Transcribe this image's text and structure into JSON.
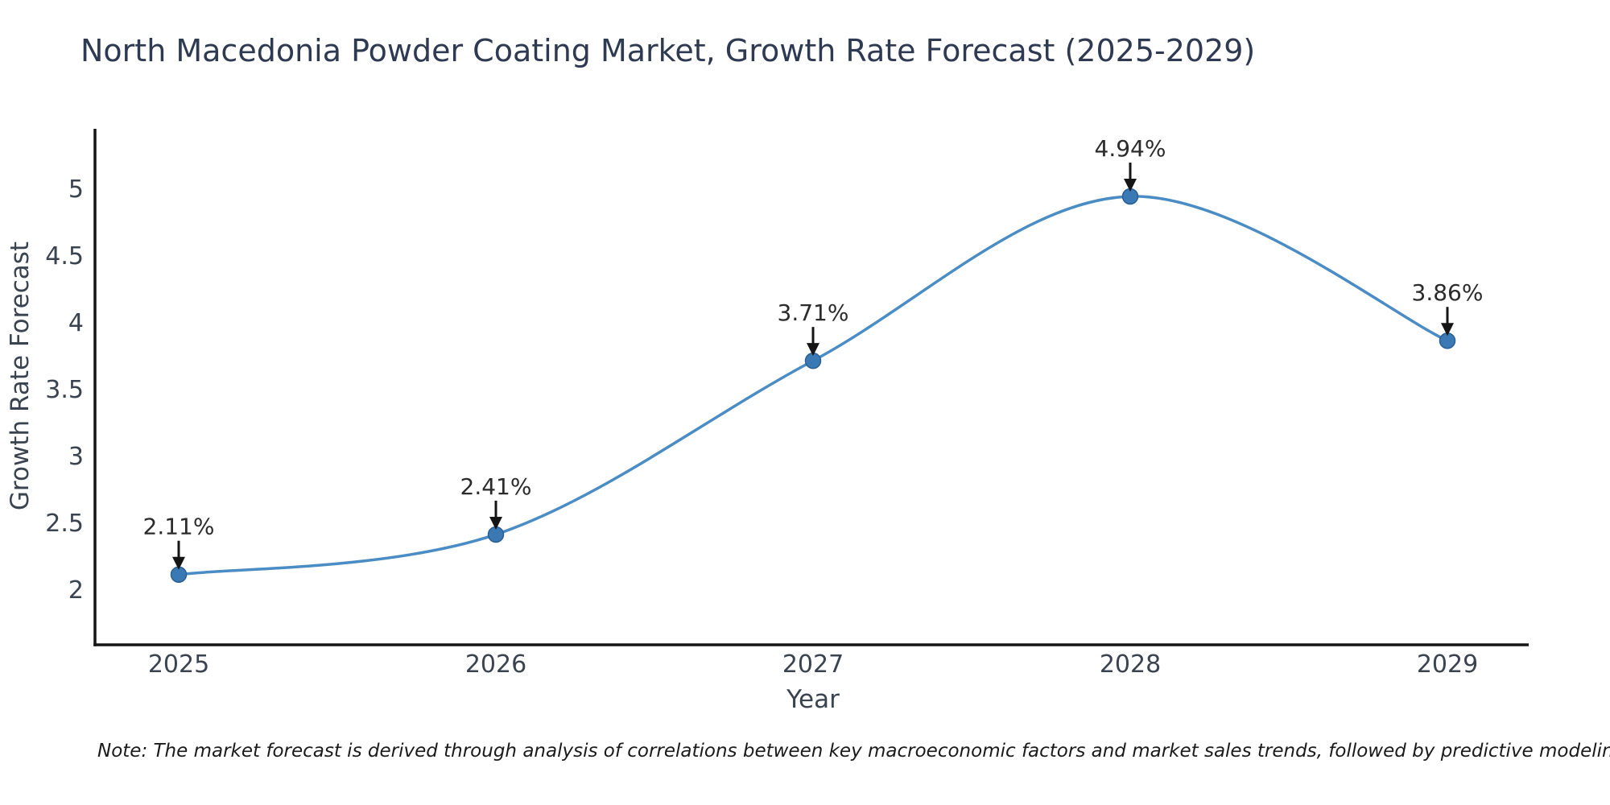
{
  "note": "Note: The market forecast is derived through analysis of correlations between key macroeconomic factors and market sales trends, followed by predictive modeling to project future sales",
  "chart_data": {
    "type": "line",
    "title": "North Macedonia Powder Coating Market, Growth Rate Forecast (2025-2029)",
    "categories": [
      "2025",
      "2026",
      "2027",
      "2028",
      "2029"
    ],
    "values": [
      2.11,
      2.41,
      3.71,
      4.94,
      3.86
    ],
    "point_labels": [
      "2.11%",
      "2.41%",
      "3.71%",
      "4.94%",
      "3.86%"
    ],
    "xlabel": "Year",
    "ylabel": "Growth Rate Forecast",
    "yticks": [
      2,
      2.5,
      3,
      3.5,
      4,
      4.5,
      5
    ],
    "ylim": [
      1.58,
      5.45
    ],
    "grid": false,
    "smooth": true,
    "legend": "none",
    "colors": {
      "line": "#4a8cc4",
      "marker_fill": "#3b79b5",
      "marker_edge": "#2a5f93",
      "annotation_text": "#2b2b2b",
      "annotation_arrow": "#151515",
      "axis_spine": "#151515",
      "tick_label": "#3a4350",
      "title": "#2e3a52"
    }
  }
}
